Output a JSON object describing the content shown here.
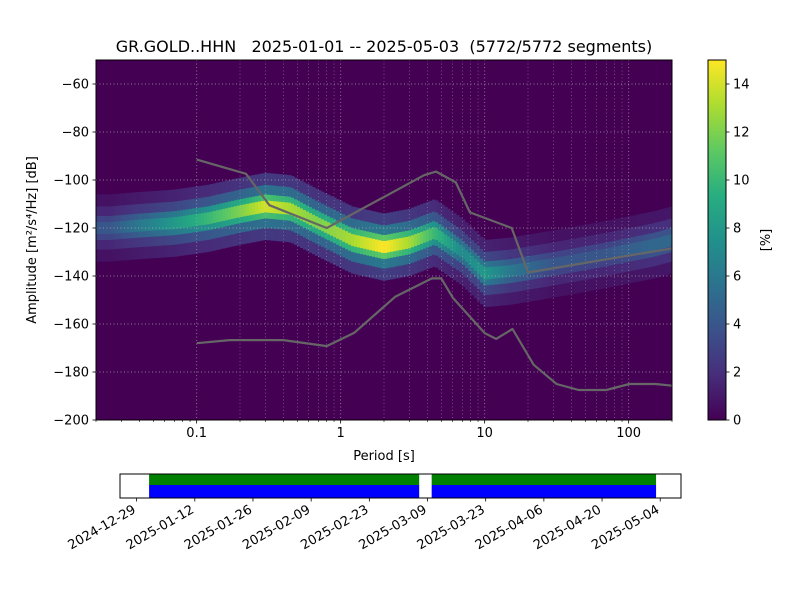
{
  "chart_data": [
    {
      "type": "heatmap",
      "title": "GR.GOLD..HHN   2025-01-01 -- 2025-05-03  (5772/5772 segments)",
      "xlabel": "Period [s]",
      "ylabel": "Amplitude [m²/s⁴/Hz] [dB]",
      "x_scale": "log",
      "xlim": [
        0.02,
        200
      ],
      "ylim": [
        -200,
        -50
      ],
      "x_ticks": [
        0.1,
        1,
        10,
        100
      ],
      "x_tick_labels": [
        "0.1",
        "1",
        "10",
        "100"
      ],
      "y_ticks": [
        -200,
        -180,
        -160,
        -140,
        -120,
        -100,
        -80,
        -60
      ],
      "y_tick_labels": [
        "−200",
        "−180",
        "−160",
        "−140",
        "−120",
        "−100",
        "−80",
        "−60"
      ],
      "grid": true,
      "colormap": "viridis",
      "colorbar": {
        "label": "[%]",
        "range": [
          0,
          15
        ],
        "ticks": [
          0,
          2,
          4,
          6,
          8,
          10,
          12,
          14
        ],
        "tick_labels": [
          "0",
          "2",
          "4",
          "6",
          "8",
          "10",
          "12",
          "14"
        ]
      },
      "density_ridge": [
        {
          "period": 0.025,
          "db": -120,
          "pct": 4
        },
        {
          "period": 0.04,
          "db": -119,
          "pct": 6
        },
        {
          "period": 0.07,
          "db": -118,
          "pct": 8
        },
        {
          "period": 0.12,
          "db": -116,
          "pct": 10
        },
        {
          "period": 0.2,
          "db": -113,
          "pct": 12
        },
        {
          "period": 0.3,
          "db": -111,
          "pct": 14
        },
        {
          "period": 0.45,
          "db": -112,
          "pct": 13
        },
        {
          "period": 0.7,
          "db": -118,
          "pct": 12
        },
        {
          "period": 1.2,
          "db": -125,
          "pct": 13
        },
        {
          "period": 2,
          "db": -128,
          "pct": 15
        },
        {
          "period": 3,
          "db": -126,
          "pct": 13
        },
        {
          "period": 4.5,
          "db": -122,
          "pct": 10
        },
        {
          "period": 7,
          "db": -130,
          "pct": 7
        },
        {
          "period": 10,
          "db": -139,
          "pct": 8
        },
        {
          "period": 15,
          "db": -138,
          "pct": 6
        },
        {
          "period": 30,
          "db": -135,
          "pct": 4
        },
        {
          "period": 70,
          "db": -131,
          "pct": 4
        },
        {
          "period": 150,
          "db": -127,
          "pct": 5
        },
        {
          "period": 200,
          "db": -125,
          "pct": 5
        }
      ],
      "noise_models": [
        {
          "color": "#666666",
          "points": [
            [
              0.1,
              -91.5
            ],
            [
              0.22,
              -97.4
            ],
            [
              0.32,
              -110.5
            ],
            [
              0.8,
              -120
            ],
            [
              3.8,
              -98
            ],
            [
              4.6,
              -96.5
            ],
            [
              6.3,
              -101
            ],
            [
              7.9,
              -113.5
            ],
            [
              15.4,
              -120
            ],
            [
              20,
              -138.5
            ],
            [
              200,
              -128.5
            ]
          ]
        },
        {
          "color": "#666666",
          "points": [
            [
              0.1,
              -168
            ],
            [
              0.17,
              -166.7
            ],
            [
              0.4,
              -166.7
            ],
            [
              0.8,
              -169.2
            ],
            [
              1.24,
              -163.7
            ],
            [
              2.4,
              -148.6
            ],
            [
              4.3,
              -141
            ],
            [
              5,
              -141
            ],
            [
              6,
              -149
            ],
            [
              10,
              -163.8
            ],
            [
              12,
              -166.2
            ],
            [
              15.6,
              -162.1
            ],
            [
              21.9,
              -177
            ],
            [
              31.6,
              -185
            ],
            [
              45,
              -187.5
            ],
            [
              70,
              -187.5
            ],
            [
              101,
              -185
            ],
            [
              154,
              -185
            ],
            [
              200,
              -185.7
            ]
          ]
        }
      ]
    },
    {
      "type": "bar",
      "x_type": "date",
      "xlim": [
        "2024-12-25",
        "2025-05-09"
      ],
      "x_ticks": [
        "2024-12-29",
        "2025-01-12",
        "2025-01-26",
        "2025-02-09",
        "2025-02-23",
        "2025-03-09",
        "2025-03-23",
        "2025-04-06",
        "2025-04-20",
        "2025-05-04"
      ],
      "series": [
        {
          "color": "#008000",
          "spans": [
            [
              "2025-01-01",
              "2025-03-07"
            ],
            [
              "2025-03-10",
              "2025-05-03"
            ]
          ]
        },
        {
          "color": "#0000ff",
          "spans": [
            [
              "2025-01-01",
              "2025-03-07"
            ],
            [
              "2025-03-10",
              "2025-05-03"
            ]
          ]
        }
      ]
    }
  ]
}
